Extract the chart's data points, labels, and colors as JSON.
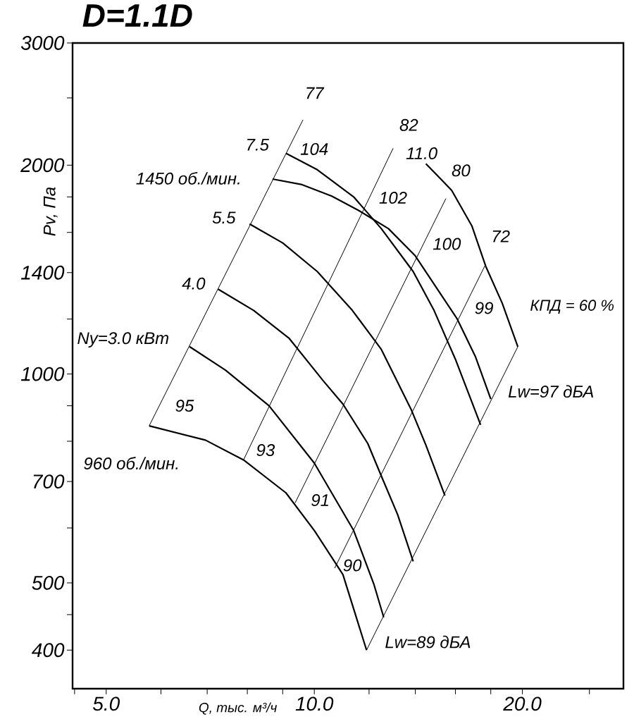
{
  "chart_data": {
    "type": "line",
    "title": "D=1.1D",
    "xlabel": "Q, тыс. м³/ч",
    "ylabel": "Pv, Па",
    "log": "xy",
    "marker": "none",
    "line_style": "solid",
    "xlim": [
      4.47,
      28
    ],
    "ylim": [
      352,
      3000
    ],
    "xticks": [
      {
        "value": 4.5,
        "label": null
      },
      {
        "value": 5,
        "label": "5.0"
      },
      {
        "value": 6,
        "label": null
      },
      {
        "value": 7,
        "label": null
      },
      {
        "value": 8,
        "label": null
      },
      {
        "value": 9,
        "label": null
      },
      {
        "value": 10,
        "label": "10.0"
      },
      {
        "value": 12,
        "label": null
      },
      {
        "value": 14,
        "label": null
      },
      {
        "value": 16,
        "label": null
      },
      {
        "value": 18,
        "label": null
      },
      {
        "value": 20,
        "label": "20.0"
      },
      {
        "value": 25,
        "label": null
      }
    ],
    "yticks": [
      400,
      {
        "value": 450,
        "label": null
      },
      500,
      {
        "value": 600,
        "label": null
      },
      700,
      {
        "value": 800,
        "label": null
      },
      {
        "value": 900,
        "label": null
      },
      1000,
      {
        "value": 1200,
        "label": null
      },
      1400,
      {
        "value": 1600,
        "label": null
      },
      {
        "value": 1800,
        "label": null
      },
      2000,
      {
        "value": 2500,
        "label": null
      },
      3000
    ],
    "series": [
      {
        "color": "#000000",
        "x": [
          8.7,
          9.6,
          10.6,
          11.6,
          12.8,
          14.0,
          16.1,
          17.1,
          18.0
        ],
        "values": [
          1910,
          1875,
          1805,
          1720,
          1620,
          1480,
          1200,
          1060,
          920
        ]
      },
      {
        "color": "#000000",
        "x": [
          9.1,
          10.1,
          11.4,
          12.5,
          13.9,
          14.9,
          16.0,
          17.4
        ],
        "values": [
          2080,
          1970,
          1800,
          1620,
          1405,
          1235,
          1050,
          845
        ]
      },
      {
        "color": "#000000",
        "x": [
          14.5,
          15.8,
          16.9,
          17.7,
          18.7,
          19.7
        ],
        "values": [
          2010,
          1840,
          1635,
          1430,
          1265,
          1095
        ]
      },
      {
        "color": "#000000",
        "x": [
          8.06,
          9.0,
          10.1,
          11.35,
          12.5,
          13.8,
          14.5,
          15.45
        ],
        "values": [
          1645,
          1545,
          1405,
          1235,
          1085,
          890,
          790,
          668
        ]
      },
      {
        "color": "#000000",
        "x": [
          7.26,
          8.17,
          9.2,
          10.3,
          11.0,
          11.95,
          12.5,
          13.2,
          13.9
        ],
        "values": [
          1325,
          1235,
          1125,
          978,
          905,
          794,
          713,
          627,
          537
        ]
      },
      {
        "color": "#000000",
        "x": [
          6.6,
          7.44,
          8.6,
          10.0,
          11.4,
          12.2,
          12.6
        ],
        "values": [
          1095,
          1013,
          900,
          744,
          595,
          497,
          446
        ]
      },
      {
        "color": "#000000",
        "x": [
          5.77,
          6.96,
          7.9,
          9.1,
          10.0,
          11.0,
          11.9
        ],
        "values": [
          842,
          803,
          752,
          674,
          595,
          514,
          400
        ]
      },
      {
        "color": "#000000",
        "x": [
          5.77,
          9.63
        ],
        "values": [
          842,
          2325
        ]
      },
      {
        "color": "#000000",
        "x": [
          7.9,
          13.0
        ],
        "values": [
          752,
          2115
        ]
      },
      {
        "color": "#000000",
        "x": [
          9.38,
          15.5
        ],
        "values": [
          652,
          1790
        ]
      },
      {
        "color": "#000000",
        "x": [
          10.7,
          17.7
        ],
        "values": [
          525,
          1440
        ]
      },
      {
        "color": "#000000",
        "x": [
          11.9,
          19.7
        ],
        "values": [
          400,
          1095
        ]
      }
    ],
    "annotations": [
      "7.5",
      "104",
      "1450 об./мин.",
      "5.5",
      "4.0",
      "Ny=3.0 кВт",
      "95",
      "960 об./мин.",
      "93",
      "91",
      "90",
      "Lw=89 дБА",
      "Lw=97 дБА",
      "102",
      "11.0",
      "100",
      "99",
      "77",
      "82",
      "80",
      "72",
      "КПД = 60 %"
    ]
  }
}
